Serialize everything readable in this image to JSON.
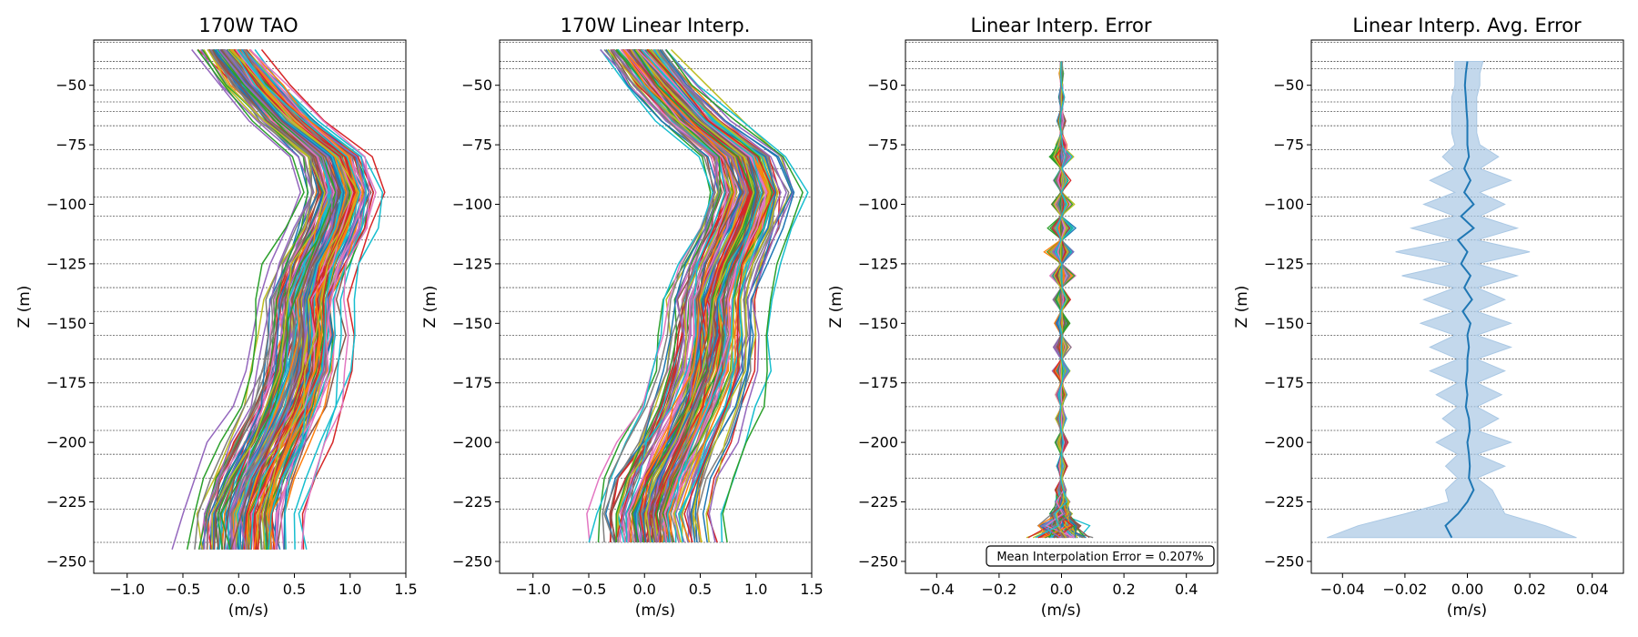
{
  "figure": {
    "palette": [
      "#1f77b4",
      "#ff7f0e",
      "#2ca02c",
      "#d62728",
      "#9467bd",
      "#8c564b",
      "#e377c2",
      "#7f7f7f",
      "#bcbd22",
      "#17becf"
    ],
    "mean_line_color": "#1f77b4",
    "band_color": "#aac8e4"
  },
  "chart_data": [
    {
      "type": "line",
      "title": "170W TAO",
      "xlabel": "(m/s)",
      "ylabel": "Z (m)",
      "xlim": [
        -1.3,
        1.5
      ],
      "ylim": [
        -255,
        -31
      ],
      "xticks": [
        -1.0,
        -0.5,
        0.0,
        0.5,
        1.0,
        1.5
      ],
      "xtick_labels": [
        "−1.0",
        "−0.5",
        "0.0",
        "0.5",
        "1.0",
        "1.5"
      ],
      "yticks": [
        -250,
        -225,
        -200,
        -175,
        -150,
        -125,
        -100,
        -75,
        -50
      ],
      "ytick_labels": [
        "−250",
        "−225",
        "−200",
        "−175",
        "−150",
        "−125",
        "−100",
        "−75",
        "−50"
      ],
      "reference_depths": [
        -32,
        -40,
        -43,
        -52,
        -57,
        -61,
        -67,
        -77,
        -85,
        -97,
        -105,
        -115,
        -125,
        -135,
        -145,
        -155,
        -165,
        -175,
        -185,
        -195,
        -205,
        -215,
        -228,
        -242
      ],
      "profile_depths": [
        -35,
        -50,
        -65,
        -80,
        -95,
        -110,
        -125,
        -140,
        -155,
        -170,
        -185,
        -200,
        -215,
        -230,
        -245
      ],
      "mean_profile": [
        -0.1,
        0.15,
        0.45,
        0.85,
        0.95,
        0.85,
        0.7,
        0.6,
        0.6,
        0.55,
        0.45,
        0.3,
        0.15,
        0.05,
        0.05
      ],
      "spread": 0.42,
      "n_profiles": 150
    },
    {
      "type": "line",
      "title": "170W Linear Interp.",
      "xlabel": "(m/s)",
      "ylabel": "Z (m)",
      "xlim": [
        -1.3,
        1.5
      ],
      "ylim": [
        -255,
        -31
      ],
      "xticks": [
        -1.0,
        -0.5,
        0.0,
        0.5,
        1.0,
        1.5
      ],
      "xtick_labels": [
        "−1.0",
        "−0.5",
        "0.0",
        "0.5",
        "1.0",
        "1.5"
      ],
      "yticks": [
        -250,
        -225,
        -200,
        -175,
        -150,
        -125,
        -100,
        -75,
        -50
      ],
      "ytick_labels": [
        "−250",
        "−225",
        "−200",
        "−175",
        "−150",
        "−125",
        "−100",
        "−75",
        "−50"
      ],
      "reference_depths": [
        -32,
        -40,
        -43,
        -52,
        -57,
        -61,
        -67,
        -77,
        -85,
        -97,
        -105,
        -115,
        -125,
        -135,
        -145,
        -155,
        -165,
        -175,
        -185,
        -195,
        -205,
        -215,
        -228,
        -242
      ],
      "profile_depths": [
        -35,
        -50,
        -65,
        -80,
        -95,
        -110,
        -125,
        -140,
        -155,
        -170,
        -185,
        -200,
        -215,
        -230,
        -242
      ],
      "mean_profile": [
        -0.1,
        0.15,
        0.45,
        0.85,
        0.95,
        0.85,
        0.7,
        0.6,
        0.6,
        0.55,
        0.45,
        0.3,
        0.15,
        0.05,
        0.08
      ],
      "spread": 0.42,
      "n_profiles": 150
    },
    {
      "type": "line",
      "title": "Linear Interp. Error",
      "xlabel": "(m/s)",
      "ylabel": "Z (m)",
      "xlim": [
        -0.5,
        0.5
      ],
      "ylim": [
        -255,
        -31
      ],
      "xticks": [
        -0.4,
        -0.2,
        0.0,
        0.2,
        0.4
      ],
      "xtick_labels": [
        "−0.4",
        "−0.2",
        "0.0",
        "0.2",
        "0.4"
      ],
      "yticks": [
        -250,
        -225,
        -200,
        -175,
        -150,
        -125,
        -100,
        -75,
        -50
      ],
      "ytick_labels": [
        "−250",
        "−225",
        "−200",
        "−175",
        "−150",
        "−125",
        "−100",
        "−75",
        "−50"
      ],
      "reference_depths": [
        -32,
        -40,
        -43,
        -52,
        -57,
        -61,
        -67,
        -77,
        -85,
        -97,
        -105,
        -115,
        -125,
        -135,
        -145,
        -155,
        -165,
        -175,
        -185,
        -195,
        -205,
        -215,
        -228,
        -242
      ],
      "error_depths": [
        -40,
        -45,
        -50,
        -55,
        -60,
        -65,
        -70,
        -75,
        -80,
        -85,
        -90,
        -95,
        -100,
        -105,
        -110,
        -115,
        -120,
        -125,
        -130,
        -135,
        -140,
        -145,
        -150,
        -155,
        -160,
        -165,
        -170,
        -175,
        -180,
        -185,
        -190,
        -195,
        -200,
        -205,
        -210,
        -215,
        -220,
        -225,
        -230,
        -235,
        -240
      ],
      "error_amplitude": [
        0.005,
        0.01,
        0.005,
        0.015,
        0.005,
        0.02,
        0.005,
        0.03,
        0.06,
        0.005,
        0.04,
        0.005,
        0.05,
        0.005,
        0.065,
        0.005,
        0.08,
        0.005,
        0.06,
        0.005,
        0.04,
        0.005,
        0.04,
        0.005,
        0.04,
        0.005,
        0.04,
        0.005,
        0.03,
        0.005,
        0.03,
        0.005,
        0.03,
        0.005,
        0.025,
        0.005,
        0.03,
        0.04,
        0.06,
        0.12,
        0.15
      ],
      "n_profiles": 150,
      "annotation": "Mean Interpolation Error = 0.207%"
    },
    {
      "type": "area",
      "title": "Linear Interp. Avg. Error",
      "xlabel": "(m/s)",
      "ylabel": "Z (m)",
      "xlim": [
        -0.05,
        0.05
      ],
      "ylim": [
        -255,
        -31
      ],
      "xticks": [
        -0.04,
        -0.02,
        0.0,
        0.02,
        0.04
      ],
      "xtick_labels": [
        "−0.04",
        "−0.02",
        "0.00",
        "0.02",
        "0.04"
      ],
      "yticks": [
        -250,
        -225,
        -200,
        -175,
        -150,
        -125,
        -100,
        -75,
        -50
      ],
      "ytick_labels": [
        "−250",
        "−225",
        "−200",
        "−175",
        "−150",
        "−125",
        "−100",
        "−75",
        "−50"
      ],
      "reference_depths": [
        -32,
        -40,
        -43,
        -52,
        -57,
        -61,
        -67,
        -77,
        -85,
        -97,
        -105,
        -115,
        -125,
        -135,
        -145,
        -155,
        -165,
        -175,
        -185,
        -195,
        -205,
        -215,
        -228,
        -242
      ],
      "depths": [
        -40,
        -45,
        -50,
        -55,
        -60,
        -65,
        -70,
        -75,
        -80,
        -85,
        -90,
        -95,
        -100,
        -105,
        -110,
        -115,
        -120,
        -125,
        -130,
        -135,
        -140,
        -145,
        -150,
        -155,
        -160,
        -165,
        -170,
        -175,
        -180,
        -185,
        -190,
        -195,
        -200,
        -205,
        -210,
        -215,
        -220,
        -225,
        -230,
        -235,
        -240
      ],
      "mean": [
        0.0,
        -0.0005,
        -0.0008,
        -0.0005,
        -0.0003,
        0.0,
        0.0,
        0.0,
        0.0005,
        -0.001,
        0.001,
        -0.001,
        0.002,
        -0.002,
        0.002,
        -0.003,
        0.0,
        -0.002,
        0.001,
        -0.001,
        0.0015,
        -0.0015,
        0.001,
        0.0,
        0.0005,
        0.0,
        0.0,
        -0.0005,
        0.0,
        -0.0005,
        0.0005,
        0.0008,
        0.0,
        0.0005,
        0.0008,
        0.0005,
        0.002,
        0.0,
        -0.003,
        -0.007,
        -0.005
      ],
      "lower": [
        -0.004,
        -0.004,
        -0.004,
        -0.005,
        -0.005,
        -0.005,
        -0.005,
        -0.004,
        -0.008,
        -0.004,
        -0.012,
        -0.004,
        -0.014,
        -0.004,
        -0.018,
        -0.004,
        -0.023,
        -0.004,
        -0.021,
        -0.004,
        -0.014,
        -0.004,
        -0.015,
        -0.004,
        -0.012,
        -0.003,
        -0.012,
        -0.003,
        -0.01,
        -0.003,
        -0.008,
        -0.003,
        -0.01,
        -0.003,
        -0.007,
        -0.003,
        -0.007,
        -0.006,
        -0.02,
        -0.035,
        -0.045
      ],
      "upper": [
        0.005,
        0.004,
        0.004,
        0.003,
        0.003,
        0.003,
        0.003,
        0.004,
        0.01,
        0.004,
        0.014,
        0.004,
        0.012,
        0.004,
        0.016,
        0.003,
        0.02,
        0.003,
        0.016,
        0.003,
        0.012,
        0.003,
        0.014,
        0.003,
        0.014,
        0.003,
        0.012,
        0.003,
        0.011,
        0.003,
        0.01,
        0.003,
        0.014,
        0.003,
        0.012,
        0.003,
        0.008,
        0.01,
        0.012,
        0.025,
        0.035
      ]
    }
  ]
}
